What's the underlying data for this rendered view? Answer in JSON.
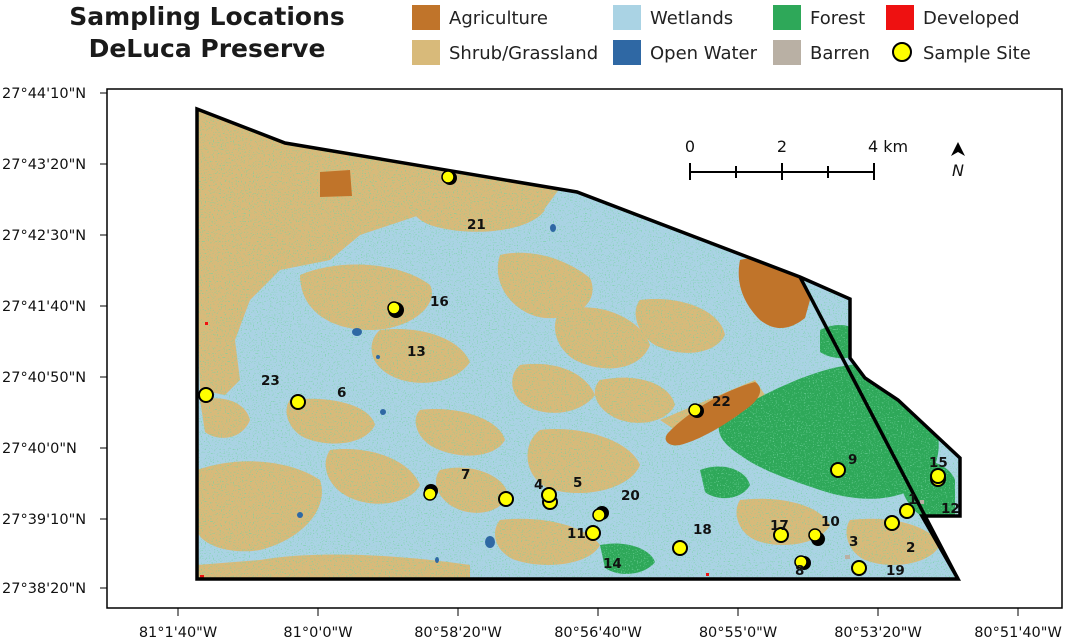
{
  "title": {
    "line1": "Sampling Locations",
    "line2": "DeLuca Preserve"
  },
  "legend": [
    {
      "id": "agriculture",
      "label": "Agriculture",
      "color": "#c0742a",
      "shape": "square"
    },
    {
      "id": "wetlands",
      "label": "Wetlands",
      "color": "#aad3e4",
      "shape": "square"
    },
    {
      "id": "forest",
      "label": "Forest",
      "color": "#2ea859",
      "shape": "square"
    },
    {
      "id": "developed",
      "label": "Developed",
      "color": "#ee1111",
      "shape": "square"
    },
    {
      "id": "shrub",
      "label": "Shrub/Grassland",
      "color": "#d8ba7a",
      "shape": "square"
    },
    {
      "id": "openwater",
      "label": "Open Water",
      "color": "#2f68a4",
      "shape": "square"
    },
    {
      "id": "barren",
      "label": "Barren",
      "color": "#b9b0a4",
      "shape": "square"
    },
    {
      "id": "site",
      "label": "Sample Site",
      "color": "#ffff00",
      "shape": "circle"
    }
  ],
  "axes": {
    "lat_ticks": [
      "27°44'10\"N",
      "27°43'20\"N",
      "27°42'30\"N",
      "27°41'40\"N",
      "27°40'50\"N",
      "27°40'0\"N",
      "27°39'10\"N",
      "27°38'20\"N"
    ],
    "lon_ticks": [
      "81°1'40\"W",
      "81°0'0\"W",
      "80°58'20\"W",
      "80°56'40\"W",
      "80°55'0\"W",
      "80°53'20\"W",
      "80°51'40\"W"
    ]
  },
  "scale_bar": {
    "labels": [
      "0",
      "2",
      "4 km"
    ]
  },
  "north_arrow": {
    "label": "N",
    "icon": "north-arrow-icon"
  },
  "sample_sites": [
    {
      "id": "1",
      "lon": -80.8867,
      "lat": 27.6526
    },
    {
      "id": "2",
      "lon": -80.8889,
      "lat": 27.6519
    },
    {
      "id": "3",
      "lon": -80.8975,
      "lat": 27.6486
    },
    {
      "id": "4",
      "lon": -80.9372,
      "lat": 27.6554
    },
    {
      "id": "5",
      "lon": -80.9372,
      "lat": 27.6542
    },
    {
      "id": "6",
      "lon": -81.0033,
      "lat": 27.6742
    },
    {
      "id": "7",
      "lon": -80.9756,
      "lat": 27.6559
    },
    {
      "id": "8",
      "lon": -80.9064,
      "lat": 27.6435
    },
    {
      "id": "9",
      "lon": -80.9,
      "lat": 27.6616
    },
    {
      "id": "10",
      "lon": -80.9086,
      "lat": 27.6496
    },
    {
      "id": "11",
      "lon": -80.9317,
      "lat": 27.6497
    },
    {
      "id": "12",
      "lon": -80.8803,
      "lat": 27.66
    },
    {
      "id": "13",
      "lon": -80.9836,
      "lat": 27.6939
    },
    {
      "id": "14",
      "lon": -80.9147,
      "lat": 27.6468
    },
    {
      "id": "15",
      "lon": -80.8794,
      "lat": 27.6608
    },
    {
      "id": "16",
      "lon": -80.9839,
      "lat": 27.6947
    },
    {
      "id": "17",
      "lon": -80.9122,
      "lat": 27.6495
    },
    {
      "id": "18",
      "lon": -80.9092,
      "lat": 27.6497
    },
    {
      "id": "19",
      "lon": -80.9017,
      "lat": 27.6425
    },
    {
      "id": "20",
      "lon": -80.9297,
      "lat": 27.6525
    },
    {
      "id": "21",
      "lon": -80.9692,
      "lat": 27.7202
    },
    {
      "id": "22",
      "lon": -80.9194,
      "lat": 27.6712
    },
    {
      "id": "23",
      "lon": -81.0247,
      "lat": 27.6758
    }
  ]
}
